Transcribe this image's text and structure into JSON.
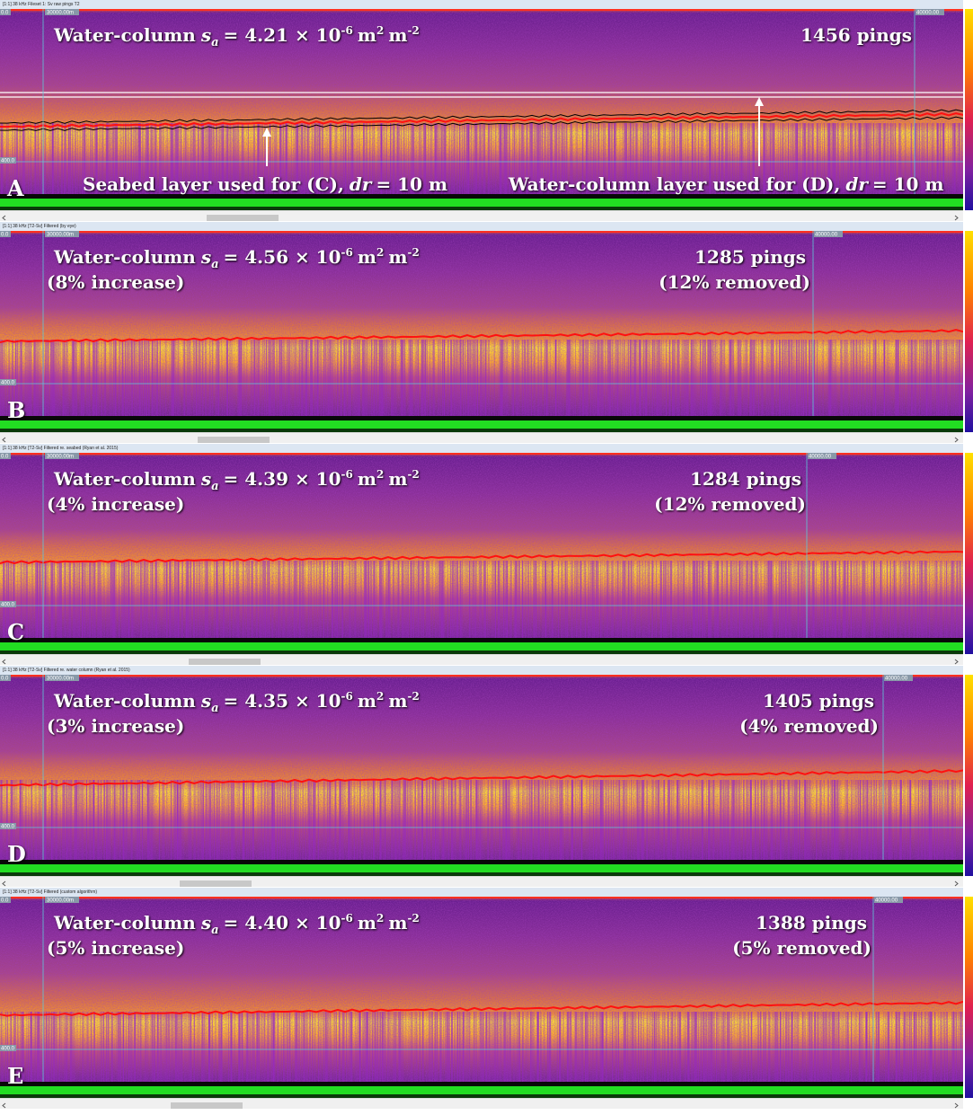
{
  "panels": [
    {
      "title_bar": "[1:1] 38 kHz Fileset 1: Sv raw pings T2",
      "depth_top": "0.0",
      "depth_bottom": "400.0",
      "distance_start": "30000.00m",
      "distance_end": "40000.00",
      "label": "A",
      "sa": {
        "prefix": "Water-column",
        "symbol": "s",
        "subscript": "a",
        "equals": "= 4.21 × 10",
        "exponent": "-6",
        "unit": "m",
        "unit_exponent": "2",
        "unit2": "m",
        "unit2_exponent": "-2"
      },
      "pings": "1456 pings",
      "annotations": [
        {
          "text": "Seabed layer used for (C),",
          "variable": "dr",
          "value": "= 10 m"
        },
        {
          "text": "Water-column layer used for (D),",
          "variable": "dr",
          "value": "= 10 m"
        }
      ]
    },
    {
      "title_bar": "[1:1] 38 kHz [T2-Sv] Filtered (by eye)",
      "depth_top": "0.0",
      "depth_bottom": "400.0",
      "distance_start": "30000.00m",
      "distance_end": "40000.00",
      "label": "B",
      "sa": {
        "prefix": "Water-column",
        "symbol": "s",
        "subscript": "a",
        "equals": "= 4.56 × 10",
        "exponent": "-6",
        "unit": "m",
        "unit_exponent": "2",
        "unit2": "m",
        "unit2_exponent": "-2"
      },
      "change": "(8% increase)",
      "pings": "1285 pings",
      "removed": "(12% removed)"
    },
    {
      "title_bar": "[1:1] 38 kHz [T2-Sv] Filtered re. seabed (Ryan et al. 2015)",
      "depth_top": "0.0",
      "depth_bottom": "400.0",
      "distance_start": "30000.00m",
      "distance_end": "40000.00",
      "label": "C",
      "sa": {
        "prefix": "Water-column",
        "symbol": "s",
        "subscript": "a",
        "equals": "= 4.39 × 10",
        "exponent": "-6",
        "unit": "m",
        "unit_exponent": "2",
        "unit2": "m",
        "unit2_exponent": "-2"
      },
      "change": "(4% increase)",
      "pings": "1284 pings",
      "removed": "(12% removed)"
    },
    {
      "title_bar": "[1:1] 38 kHz [T2-Sv] Filtered re. water column (Ryan et al. 2015)",
      "depth_top": "0.0",
      "depth_bottom": "400.0",
      "distance_start": "30000.00m",
      "distance_end": "40000.00",
      "label": "D",
      "sa": {
        "prefix": "Water-column",
        "symbol": "s",
        "subscript": "a",
        "equals": "= 4.35 × 10",
        "exponent": "-6",
        "unit": "m",
        "unit_exponent": "2",
        "unit2": "m",
        "unit2_exponent": "-2"
      },
      "change": "(3% increase)",
      "pings": "1405 pings",
      "removed": "(4% removed)"
    },
    {
      "title_bar": "[1:1] 38 kHz [T2-Sv] Filtered (custom algorithm)",
      "depth_top": "0.0",
      "depth_bottom": "400.0",
      "distance_start": "30000.00m",
      "distance_end": "40000.00",
      "label": "E",
      "sa": {
        "prefix": "Water-column",
        "symbol": "s",
        "subscript": "a",
        "equals": "= 4.40 × 10",
        "exponent": "-6",
        "unit": "m",
        "unit_exponent": "2",
        "unit2": "m",
        "unit2_exponent": "-2"
      },
      "change": "(5% increase)",
      "pings": "1388 pings",
      "removed": "(5% removed)"
    }
  ]
}
